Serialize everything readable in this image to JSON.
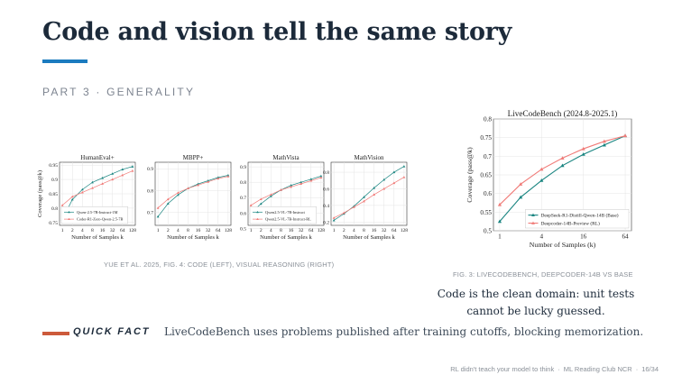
{
  "slide": {
    "title": "Code and vision tell the same story",
    "section": "PART 3 · GENERALITY",
    "left_caption": "YUE ET AL. 2025, FIG. 4: CODE (LEFT), VISUAL REASONING (RIGHT)",
    "right_caption": "FIG. 3: LIVECODEBENCH, DEEPCODER-14B VS BASE",
    "note": "Code is the clean domain: unit tests cannot be lucky guessed.",
    "quick_fact_label": "QUICK FACT",
    "quick_fact_text": "LiveCodeBench uses problems published after training cutoffs, blocking memorization.",
    "footer": {
      "talk": "RL didn't teach your model to think",
      "club": "ML Reading Club NCR",
      "page": "16/34"
    }
  },
  "colors": {
    "accent_blue": "#1b7bbf",
    "accent_orange": "#cc5a3b",
    "series_teal": "#1a8581",
    "series_salmon": "#f07b78"
  },
  "chart_data": [
    {
      "type": "line",
      "title": "HumanEval+",
      "xlabel": "Number of Samples k",
      "ylabel": "Coverage (pass@k)",
      "x": [
        1,
        2,
        4,
        8,
        16,
        32,
        64,
        128
      ],
      "x_scale": "log2",
      "ylim": [
        0.74,
        0.96
      ],
      "y_ticks": [
        0.75,
        0.8,
        0.85,
        0.9,
        0.95
      ],
      "y_tick_labels": [
        "0.75",
        "0.8",
        "0.85",
        "0.9",
        "0.95"
      ],
      "legend": "bottom-left",
      "series": [
        {
          "name": "Qwen-2.5-7B-Instruct-1M",
          "marker": "triangle",
          "color": "#1a8581",
          "values": [
            0.76,
            0.83,
            0.865,
            0.89,
            0.905,
            0.92,
            0.935,
            0.945
          ]
        },
        {
          "name": "Coder-R1-Zero-Qwen-2.5-7B",
          "marker": "triangle",
          "color": "#f07b78",
          "values": [
            0.81,
            0.84,
            0.855,
            0.87,
            0.885,
            0.9,
            0.915,
            0.93
          ]
        }
      ]
    },
    {
      "type": "line",
      "title": "MBPP+",
      "xlabel": "Number of Samples k",
      "ylabel": "",
      "x": [
        1,
        2,
        4,
        8,
        16,
        32,
        64,
        128
      ],
      "x_scale": "log2",
      "ylim": [
        0.64,
        0.93
      ],
      "y_ticks": [
        0.7,
        0.8,
        0.9
      ],
      "y_tick_labels": [
        "0.7",
        "0.8",
        "0.9"
      ],
      "series": [
        {
          "name": "",
          "marker": "triangle",
          "color": "#1a8581",
          "values": [
            0.68,
            0.74,
            0.78,
            0.81,
            0.83,
            0.845,
            0.86,
            0.87
          ]
        },
        {
          "name": "",
          "marker": "triangle",
          "color": "#f07b78",
          "values": [
            0.72,
            0.76,
            0.79,
            0.81,
            0.825,
            0.84,
            0.855,
            0.865
          ]
        }
      ]
    },
    {
      "type": "line",
      "title": "MathVista",
      "xlabel": "Number of Samples k",
      "ylabel": "",
      "x": [
        1,
        2,
        4,
        8,
        16,
        32,
        64,
        128
      ],
      "x_scale": "log2",
      "ylim": [
        0.52,
        0.93
      ],
      "y_ticks": [
        0.5,
        0.6,
        0.7,
        0.8,
        0.9
      ],
      "y_tick_labels": [
        "0.5",
        "0.6",
        "0.7",
        "0.8",
        "0.9"
      ],
      "legend": "bottom-left",
      "series": [
        {
          "name": "Qwen2.5-VL-7B-Instruct",
          "marker": "triangle",
          "color": "#1a8581",
          "values": [
            0.6,
            0.66,
            0.71,
            0.75,
            0.78,
            0.8,
            0.82,
            0.84
          ]
        },
        {
          "name": "Qwen2.5-VL-7B-Instruct-RL",
          "marker": "triangle",
          "color": "#f07b78",
          "values": [
            0.65,
            0.69,
            0.72,
            0.75,
            0.77,
            0.79,
            0.81,
            0.83
          ]
        }
      ]
    },
    {
      "type": "line",
      "title": "MathVision",
      "xlabel": "Number of Samples k",
      "ylabel": "",
      "x": [
        1,
        2,
        4,
        8,
        16,
        32,
        64,
        128
      ],
      "x_scale": "log2",
      "ylim": [
        0.16,
        0.92
      ],
      "y_ticks": [
        0.2,
        0.4,
        0.6,
        0.8
      ],
      "y_tick_labels": [
        "0.2",
        "0.4",
        "0.6",
        "0.8"
      ],
      "series": [
        {
          "name": "",
          "marker": "triangle",
          "color": "#1a8581",
          "values": [
            0.22,
            0.3,
            0.39,
            0.5,
            0.61,
            0.71,
            0.8,
            0.87
          ]
        },
        {
          "name": "",
          "marker": "triangle",
          "color": "#f07b78",
          "values": [
            0.25,
            0.31,
            0.38,
            0.45,
            0.53,
            0.6,
            0.67,
            0.74
          ]
        }
      ]
    },
    {
      "type": "line",
      "title": "LiveCodeBench (2024.8-2025.1)",
      "xlabel": "Number of Samples (k)",
      "ylabel": "Coverage (pass@k)",
      "x": [
        1,
        2,
        4,
        8,
        16,
        32,
        64
      ],
      "x_scale": "log2",
      "ylim": [
        0.5,
        0.8
      ],
      "y_ticks": [
        0.5,
        0.55,
        0.6,
        0.65,
        0.7,
        0.75,
        0.8
      ],
      "y_tick_labels": [
        "0.5",
        "0.55",
        "0.6",
        "0.65",
        "0.7",
        "0.75",
        "0.8"
      ],
      "x_ticks": [
        1,
        4,
        16,
        64
      ],
      "x_tick_labels": [
        "1",
        "4",
        "16",
        "64"
      ],
      "legend": "bottom-right",
      "series": [
        {
          "name": "DeepSeek-R1-Distill-Qwen-14B (Base)",
          "marker": "triangle",
          "color": "#1a8581",
          "values": [
            0.525,
            0.59,
            0.635,
            0.675,
            0.705,
            0.73,
            0.755
          ]
        },
        {
          "name": "Deepcoder-14B-Preview (RL)",
          "marker": "triangle",
          "color": "#f07b78",
          "values": [
            0.57,
            0.625,
            0.665,
            0.695,
            0.72,
            0.74,
            0.755
          ]
        }
      ]
    }
  ]
}
